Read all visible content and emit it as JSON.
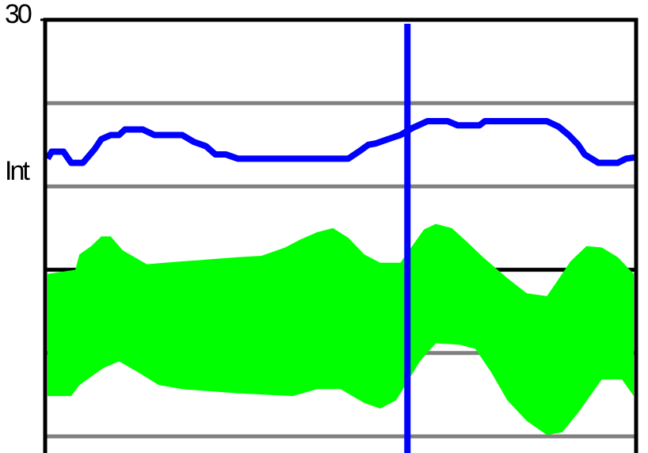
{
  "chart_data": {
    "type": "band-line",
    "ylabel": "Int",
    "xlim": [
      0,
      100
    ],
    "ylim": [
      -1.2,
      30
    ],
    "yticks": [
      30
    ],
    "grid_lines": [
      {
        "value": 24,
        "color": "#808080"
      },
      {
        "value": 18,
        "color": "#808080"
      },
      {
        "value": 12,
        "color": "#000000"
      },
      {
        "value": 6,
        "color": "#808080"
      },
      {
        "value": 0,
        "color": "#808080"
      }
    ],
    "cursor": {
      "x": 61.3,
      "color": "#0000ff"
    },
    "band": {
      "color": "#00ff00",
      "upper": {
        "x": [
          0.4,
          5.1,
          5.8,
          7.8,
          9.5,
          11.1,
          13.1,
          17.2,
          23.2,
          32.6,
          36.6,
          40.6,
          43.3,
          46.0,
          48.7,
          51.3,
          54.0,
          56.7,
          60.1,
          62.1,
          64.1,
          66.1,
          68.8,
          71.4,
          74.1,
          78.2,
          81.5,
          84.9,
          86.2,
          88.9,
          91.6,
          94.2,
          96.9,
          99.6
        ],
        "values": [
          11.7,
          12.0,
          13.1,
          13.7,
          14.4,
          14.4,
          13.4,
          12.4,
          12.6,
          12.9,
          13.0,
          13.6,
          14.2,
          14.7,
          15.0,
          14.3,
          13.1,
          12.5,
          12.5,
          13.7,
          14.9,
          15.3,
          15.0,
          14.0,
          12.9,
          11.4,
          10.3,
          10.1,
          10.9,
          12.6,
          13.7,
          13.6,
          12.9,
          11.7
        ]
      },
      "lower": {
        "x": [
          0.4,
          4.4,
          5.8,
          9.8,
          12.5,
          15.8,
          19.2,
          23.2,
          32.6,
          41.9,
          46.0,
          50.0,
          54.0,
          56.7,
          59.4,
          61.4,
          63.4,
          66.1,
          70.1,
          72.8,
          75.5,
          78.2,
          81.5,
          84.9,
          87.5,
          90.2,
          94.2,
          97.6,
          99.6
        ],
        "values": [
          2.9,
          2.9,
          3.7,
          4.9,
          5.4,
          4.6,
          3.7,
          3.4,
          3.1,
          2.9,
          3.4,
          3.4,
          2.4,
          2.0,
          2.6,
          4.0,
          5.4,
          6.7,
          6.6,
          6.3,
          4.6,
          2.6,
          1.1,
          0.1,
          0.3,
          1.7,
          4.1,
          4.1,
          2.9
        ]
      }
    },
    "series": [
      {
        "color": "#0000ff",
        "x": [
          0.4,
          1.1,
          3.1,
          4.4,
          6.4,
          8.4,
          9.5,
          11.1,
          12.5,
          13.5,
          16.5,
          18.5,
          23.2,
          25.2,
          27.2,
          28.8,
          30.6,
          32.6,
          51.3,
          53.4,
          54.7,
          56.0,
          58.0,
          60.1,
          62.1,
          64.7,
          68.1,
          69.8,
          73.5,
          74.4,
          84.9,
          86.9,
          88.6,
          90.2,
          91.3,
          93.6,
          96.9,
          98.3,
          100
        ],
        "values": [
          20.0,
          20.5,
          20.5,
          19.7,
          19.7,
          20.7,
          21.4,
          21.7,
          21.7,
          22.1,
          22.1,
          21.7,
          21.7,
          21.2,
          20.9,
          20.3,
          20.3,
          20.0,
          20.0,
          20.6,
          21.0,
          21.1,
          21.4,
          21.7,
          22.2,
          22.7,
          22.7,
          22.4,
          22.4,
          22.7,
          22.7,
          22.3,
          21.7,
          21.0,
          20.3,
          19.7,
          19.7,
          20.0,
          20.1
        ]
      }
    ]
  }
}
